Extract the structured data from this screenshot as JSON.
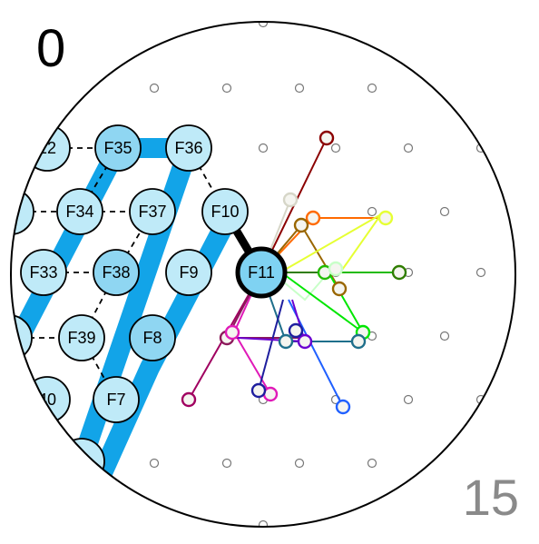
{
  "labels": {
    "top_left": "0",
    "bottom_right": "15"
  },
  "colors": {
    "node_fill": "#bfeaf8",
    "node_fill_dark": "#8fd6f2",
    "node_stroke": "#000000",
    "band": "#12a4e8",
    "focus_fill": "#7fd2f2",
    "grid_dot": "#777777"
  },
  "nodes": [
    {
      "id": "F12",
      "label": "12",
      "shade": "light"
    },
    {
      "id": "F35",
      "label": "F35",
      "shade": "dark"
    },
    {
      "id": "F36",
      "label": "F36",
      "shade": "light"
    },
    {
      "id": "F3",
      "label": "3",
      "shade": "light"
    },
    {
      "id": "F34",
      "label": "F34",
      "shade": "light"
    },
    {
      "id": "F37",
      "label": "F37",
      "shade": "light"
    },
    {
      "id": "F10",
      "label": "F10",
      "shade": "light"
    },
    {
      "id": "F33",
      "label": "F33",
      "shade": "light"
    },
    {
      "id": "F38",
      "label": "F38",
      "shade": "dark"
    },
    {
      "id": "F9",
      "label": "F9",
      "shade": "light"
    },
    {
      "id": "F11",
      "label": "F11",
      "shade": "focus"
    },
    {
      "id": "F2",
      "label": "2",
      "shade": "light"
    },
    {
      "id": "F39",
      "label": "F39",
      "shade": "light"
    },
    {
      "id": "F8",
      "label": "F8",
      "shade": "dark"
    },
    {
      "id": "F40",
      "label": "40",
      "shade": "light"
    },
    {
      "id": "F7",
      "label": "F7",
      "shade": "light"
    },
    {
      "id": "F6",
      "label": "",
      "shade": "light"
    }
  ],
  "dashed_links": [
    [
      "F12",
      "F35"
    ],
    [
      "F35",
      "F34"
    ],
    [
      "F36",
      "F10"
    ],
    [
      "F3",
      "F34"
    ],
    [
      "F34",
      "F37"
    ],
    [
      "F33",
      "F38"
    ],
    [
      "F38",
      "F37"
    ],
    [
      "F38",
      "F39"
    ],
    [
      "F2",
      "F39"
    ],
    [
      "F39",
      "F7"
    ]
  ],
  "bold_link": [
    "F10",
    "F11"
  ],
  "trajectory_colors": [
    "#8b0000",
    "#d6d6c8",
    "#ff6a00",
    "#996600",
    "#e6ff33",
    "#22bb00",
    "#2f7d00",
    "#c8ffc8",
    "#00e600",
    "#1f6f8b",
    "#e01ab8",
    "#a00060",
    "#8b1a5a",
    "#1e1e9e",
    "#2060ff",
    "#6a00d0",
    "#ff66dd"
  ]
}
